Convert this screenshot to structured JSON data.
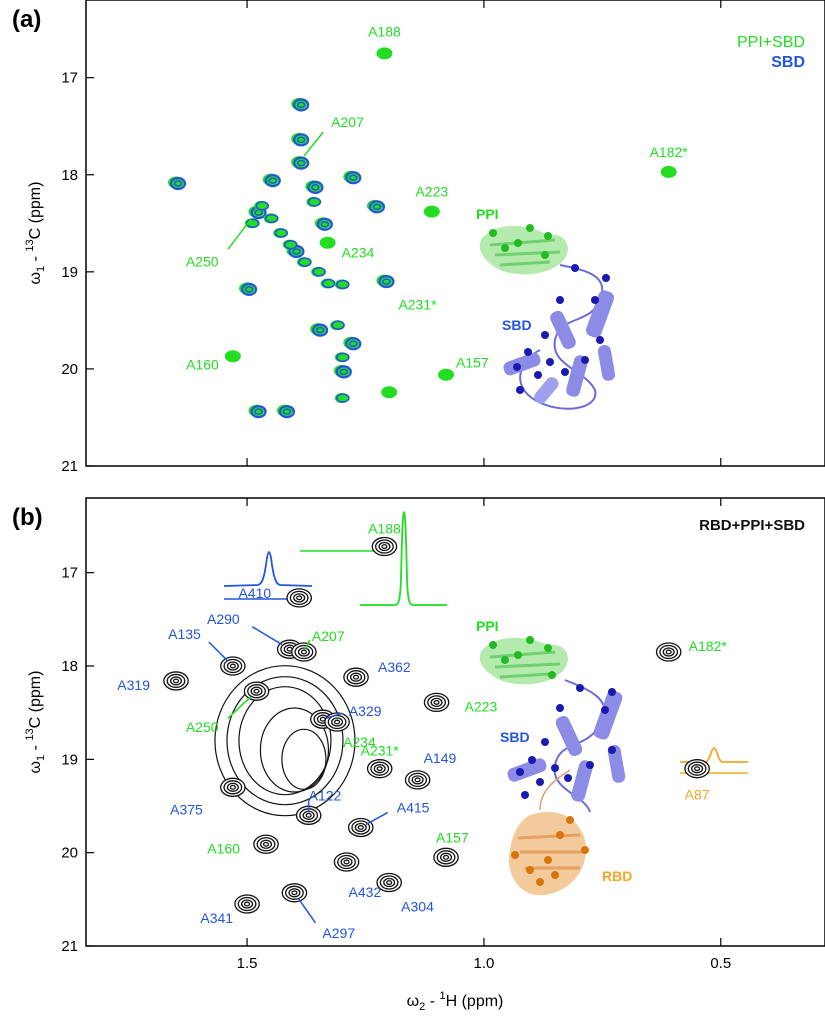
{
  "colors": {
    "green": "#22dd22",
    "blue": "#2255dd",
    "black": "#111111",
    "orange": "#f5a623",
    "pale_blue": "#8c8ce6",
    "pale_green": "#a8e6a0",
    "pale_orange": "#f2c490"
  },
  "chart_data": [
    {
      "type": "scatter",
      "panel_label": "(a)",
      "legend": [
        {
          "name": "PPI+SBD",
          "color": "#22dd22"
        },
        {
          "name": "SBD",
          "color": "#2255dd"
        }
      ],
      "legend_placement": "top-right",
      "x_axis": {
        "label_main": "ω",
        "label_sub": "2",
        "label_mid": " - ",
        "label_sup": "1",
        "label_tail": "H  (ppm)",
        "range": [
          1.84,
          0.28
        ],
        "reversed": true,
        "ticks": [
          1.5,
          1.0,
          0.5
        ]
      },
      "y_axis": {
        "label_main": "ω",
        "label_sub": "1",
        "label_mid": " - ",
        "label_sup": "13",
        "label_tail": "C  (ppm)",
        "range": [
          16.2,
          21.0
        ],
        "reversed": true,
        "ticks": [
          17,
          18,
          19,
          20,
          21
        ]
      },
      "grid": false,
      "peaks": [
        {
          "label": "A188",
          "x": 1.21,
          "y": 16.75,
          "series": "PPI+SBD"
        },
        {
          "label": "A182*",
          "x": 0.61,
          "y": 17.97,
          "series": "PPI+SBD"
        },
        {
          "label": "A207",
          "x": 1.39,
          "y": 17.87,
          "series": "PPI+SBD+SBD"
        },
        {
          "label": "A223",
          "x": 1.11,
          "y": 18.38,
          "series": "PPI+SBD"
        },
        {
          "label": "A250",
          "x": 1.48,
          "y": 18.38,
          "series": "PPI+SBD+SBD"
        },
        {
          "label": "A234",
          "x": 1.33,
          "y": 18.7,
          "series": "PPI+SBD"
        },
        {
          "label": "A231*",
          "x": 1.21,
          "y": 19.09,
          "series": "PPI+SBD+SBD"
        },
        {
          "label": "A160",
          "x": 1.53,
          "y": 19.87,
          "series": "PPI+SBD"
        },
        {
          "label": "A157",
          "x": 1.08,
          "y": 20.06,
          "series": "PPI+SBD"
        },
        {
          "label": "",
          "x": 1.65,
          "y": 18.08,
          "series": "PPI+SBD+SBD"
        },
        {
          "label": "",
          "x": 1.39,
          "y": 17.27,
          "series": "PPI+SBD+SBD"
        },
        {
          "label": "",
          "x": 1.39,
          "y": 17.63,
          "series": "PPI+SBD+SBD"
        },
        {
          "label": "",
          "x": 1.45,
          "y": 18.05,
          "series": "PPI+SBD+SBD"
        },
        {
          "label": "",
          "x": 1.36,
          "y": 18.12,
          "series": "PPI+SBD+SBD"
        },
        {
          "label": "",
          "x": 1.28,
          "y": 18.02,
          "series": "PPI+SBD+SBD"
        },
        {
          "label": "",
          "x": 1.23,
          "y": 18.32,
          "series": "PPI+SBD+SBD"
        },
        {
          "label": "",
          "x": 1.34,
          "y": 18.5,
          "series": "PPI+SBD+SBD"
        },
        {
          "label": "",
          "x": 1.4,
          "y": 18.78,
          "series": "PPI+SBD+SBD"
        },
        {
          "label": "",
          "x": 1.5,
          "y": 19.17,
          "series": "PPI+SBD+SBD"
        },
        {
          "label": "",
          "x": 1.35,
          "y": 19.59,
          "series": "PPI+SBD+SBD"
        },
        {
          "label": "",
          "x": 1.28,
          "y": 19.73,
          "series": "PPI+SBD+SBD"
        },
        {
          "label": "",
          "x": 1.3,
          "y": 20.02,
          "series": "PPI+SBD+SBD"
        },
        {
          "label": "",
          "x": 1.2,
          "y": 20.24,
          "series": "PPI+SBD"
        },
        {
          "label": "",
          "x": 1.48,
          "y": 20.43,
          "series": "PPI+SBD+SBD"
        },
        {
          "label": "",
          "x": 1.42,
          "y": 20.43,
          "series": "PPI+SBD+SBD"
        }
      ],
      "structure_labels": [
        {
          "text": "PPI",
          "color": "#22dd22"
        },
        {
          "text": "SBD",
          "color": "#2255dd"
        }
      ]
    },
    {
      "type": "scatter",
      "panel_label": "(b)",
      "legend": [
        {
          "name": "RBD+PPI+SBD",
          "color": "#111111"
        }
      ],
      "legend_placement": "top-right",
      "x_axis": {
        "label_main": "ω",
        "label_sub": "2",
        "label_mid": " - ",
        "label_sup": "1",
        "label_tail": "H  (ppm)",
        "range": [
          1.84,
          0.28
        ],
        "reversed": true,
        "ticks": [
          1.5,
          1.0,
          0.5
        ]
      },
      "y_axis": {
        "label_main": "ω",
        "label_sub": "1",
        "label_mid": " - ",
        "label_sup": "13",
        "label_tail": "C  (ppm)",
        "range": [
          16.2,
          21.0
        ],
        "reversed": true,
        "ticks": [
          17,
          18,
          19,
          20,
          21
        ]
      },
      "grid": false,
      "peaks": [
        {
          "label": "A188",
          "x": 1.21,
          "y": 16.72,
          "label_color": "#22dd22"
        },
        {
          "label": "A410",
          "x": 1.39,
          "y": 17.27,
          "label_color": "#2255dd"
        },
        {
          "label": "A182*",
          "x": 0.61,
          "y": 17.85,
          "label_color": "#22dd22"
        },
        {
          "label": "A290",
          "x": 1.41,
          "y": 17.82,
          "label_color": "#2255dd"
        },
        {
          "label": "A207",
          "x": 1.38,
          "y": 17.85,
          "label_color": "#22dd22"
        },
        {
          "label": "A135",
          "x": 1.53,
          "y": 18.0,
          "label_color": "#2255dd"
        },
        {
          "label": "A319",
          "x": 1.65,
          "y": 18.16,
          "label_color": "#2255dd"
        },
        {
          "label": "A362",
          "x": 1.27,
          "y": 18.12,
          "label_color": "#2255dd"
        },
        {
          "label": "A250",
          "x": 1.48,
          "y": 18.27,
          "label_color": "#22dd22"
        },
        {
          "label": "A223",
          "x": 1.1,
          "y": 18.39,
          "label_color": "#22dd22"
        },
        {
          "label": "A329",
          "x": 1.34,
          "y": 18.57,
          "label_color": "#2255dd"
        },
        {
          "label": "A234",
          "x": 1.31,
          "y": 18.6,
          "label_color": "#22dd22"
        },
        {
          "label": "A231*",
          "x": 1.22,
          "y": 19.1,
          "label_color": "#22dd22"
        },
        {
          "label": "A149",
          "x": 1.14,
          "y": 19.22,
          "label_color": "#2255dd"
        },
        {
          "label": "A375",
          "x": 1.53,
          "y": 19.3,
          "label_color": "#2255dd"
        },
        {
          "label": "A122",
          "x": 1.37,
          "y": 19.6,
          "label_color": "#2255dd"
        },
        {
          "label": "A415",
          "x": 1.26,
          "y": 19.73,
          "label_color": "#2255dd"
        },
        {
          "label": "A160",
          "x": 1.46,
          "y": 19.91,
          "label_color": "#22dd22"
        },
        {
          "label": "A432",
          "x": 1.29,
          "y": 20.1,
          "label_color": "#2255dd"
        },
        {
          "label": "A157",
          "x": 1.08,
          "y": 20.05,
          "label_color": "#22dd22"
        },
        {
          "label": "A304",
          "x": 1.2,
          "y": 20.32,
          "label_color": "#2255dd"
        },
        {
          "label": "A341",
          "x": 1.5,
          "y": 20.55,
          "label_color": "#2255dd"
        },
        {
          "label": "A297",
          "x": 1.4,
          "y": 20.43,
          "label_color": "#2255dd"
        },
        {
          "label": "A87",
          "x": 0.55,
          "y": 19.1,
          "label_color": "#f5a623"
        }
      ],
      "structure_labels": [
        {
          "text": "PPI",
          "color": "#22dd22"
        },
        {
          "text": "SBD",
          "color": "#2255dd"
        },
        {
          "text": "RBD",
          "color": "#f5a623"
        }
      ]
    }
  ]
}
